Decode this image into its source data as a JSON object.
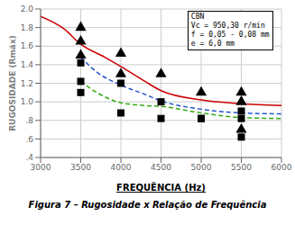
{
  "chart_data": {
    "type": "line",
    "title": "Figura 7 – Rugosidade x Relação de Frequência",
    "x_label": "FREQUÊNCIA (Hz)",
    "y_label": "RUGOSIDADE (Rmáx)",
    "annotation": [
      "CBN",
      "Vc = 950,30 r/min",
      "f = 0,05 - 0,08 mm",
      "e = 6,0 mm"
    ],
    "xlim": [
      3000,
      6000
    ],
    "ylim": [
      0.4,
      2.0
    ],
    "xticks": [
      3000,
      3500,
      4000,
      4500,
      5000,
      5500,
      6000
    ],
    "yticks": [
      {
        "value": 0.4,
        "label": ".4"
      },
      {
        "value": 0.6,
        "label": ".6"
      },
      {
        "value": 0.8,
        "label": ".8"
      },
      {
        "value": 1.0,
        "label": "1.0"
      },
      1.2,
      1.4,
      1.6,
      1.8,
      {
        "value": 2.0,
        "label": "2.0"
      }
    ],
    "grid": true,
    "series": [
      {
        "type": "line",
        "line_style": "solid",
        "color": "#cc0000",
        "x": [
          3000,
          3300,
          3500,
          3800,
          4000,
          4300,
          4500,
          5000,
          5500,
          6000
        ],
        "values": [
          1.92,
          1.78,
          1.62,
          1.48,
          1.38,
          1.22,
          1.12,
          1.02,
          0.98,
          0.96
        ]
      },
      {
        "type": "line",
        "line_style": "dashed",
        "color": "#2255cc",
        "x": [
          3500,
          3700,
          4000,
          4300,
          4500,
          5000,
          5500,
          6000
        ],
        "values": [
          1.48,
          1.32,
          1.18,
          1.08,
          1.01,
          0.92,
          0.88,
          0.87
        ]
      },
      {
        "type": "line",
        "line_style": "dashed",
        "color": "#33aa11",
        "x": [
          3500,
          3700,
          4000,
          4300,
          4500,
          5000,
          5500,
          6000
        ],
        "values": [
          1.22,
          1.1,
          0.99,
          0.96,
          0.95,
          0.88,
          0.83,
          0.82
        ]
      },
      {
        "type": "scatter",
        "marker": "triangle",
        "color": "#000000",
        "x": [
          3500,
          3500,
          3500,
          4000,
          4000,
          4500,
          5000,
          5500,
          5500,
          5500
        ],
        "values": [
          1.8,
          1.65,
          1.5,
          1.52,
          1.3,
          1.3,
          1.1,
          1.1,
          1.0,
          0.7
        ]
      },
      {
        "type": "scatter",
        "marker": "square",
        "color": "#000000",
        "x": [
          3500,
          3500,
          3500,
          4000,
          4000,
          4500,
          4500,
          5000,
          5000,
          5500,
          5500,
          5500
        ],
        "values": [
          1.42,
          1.22,
          1.1,
          1.2,
          0.88,
          1.0,
          0.82,
          0.82,
          0.82,
          0.9,
          0.82,
          0.62
        ]
      }
    ]
  }
}
